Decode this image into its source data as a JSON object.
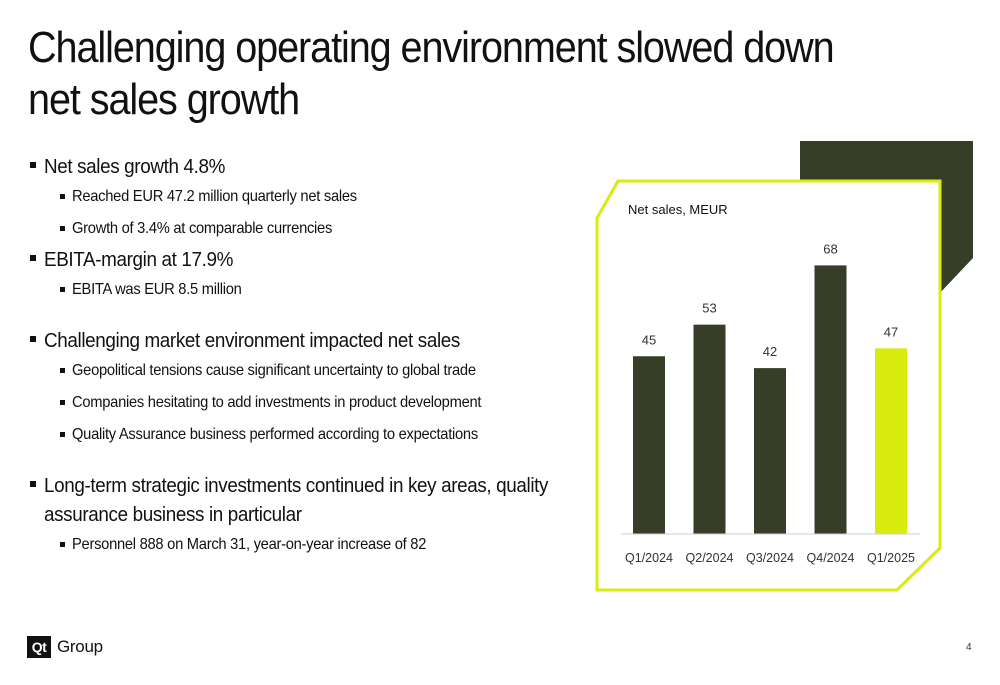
{
  "title": "Challenging operating environment slowed down net sales growth",
  "bullets": [
    {
      "text": "Net sales growth 4.8%",
      "sub": [
        "Reached EUR 47.2 million quarterly net sales",
        "Growth of 3.4% at comparable currencies"
      ]
    },
    {
      "text": "EBITA-margin at 17.9%",
      "sub": [
        "EBITA was EUR 8.5 million"
      ]
    },
    {
      "text": "Challenging market environment impacted net sales",
      "sub": [
        "Geopolitical tensions cause significant uncertainty to global trade",
        "Companies hesitating to add investments in product development",
        "Quality Assurance business performed according to expectations"
      ]
    },
    {
      "text": "Long-term strategic investments continued in key areas, quality assurance business in particular",
      "sub": [
        "Personnel 888 on March 31, year-on-year increase of 82"
      ]
    }
  ],
  "chart_data": {
    "type": "bar",
    "title": "Net sales, MEUR",
    "categories": [
      "Q1/2024",
      "Q2/2024",
      "Q3/2024",
      "Q4/2024",
      "Q1/2025"
    ],
    "values": [
      45,
      53,
      42,
      68,
      47
    ],
    "data_labels": [
      "45",
      "53",
      "42",
      "68",
      "47"
    ],
    "highlight_index": 4,
    "xlabel": "",
    "ylabel": "",
    "ylim": [
      0,
      80
    ],
    "grid": false,
    "legend": "none",
    "colors": {
      "bar": "#363e28",
      "highlight": "#d9ec0f",
      "frame": "#d9ec0f",
      "accent_shape": "#363e28",
      "label": "#333333",
      "baseline": "#cfcfcf"
    }
  },
  "footer": {
    "logo_mark": "Qt",
    "logo_text": "Group",
    "page_number": "4"
  }
}
